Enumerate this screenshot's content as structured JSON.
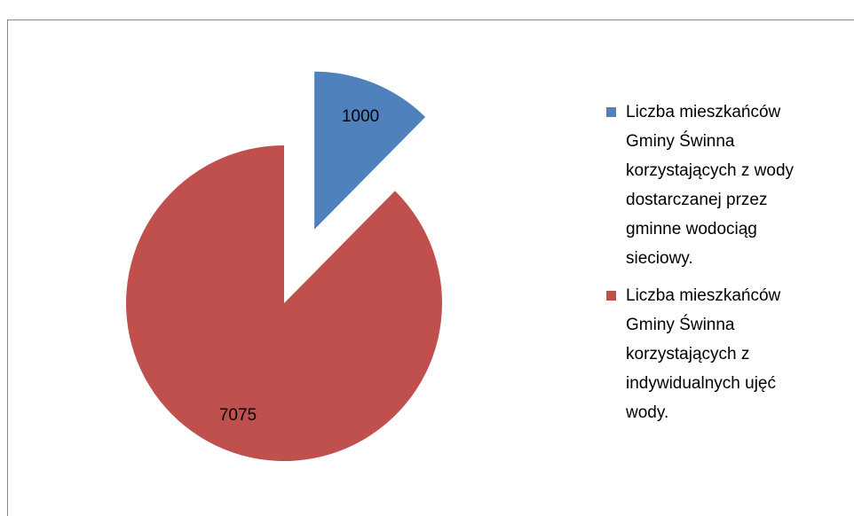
{
  "chart_data": {
    "type": "pie",
    "exploded": [
      true,
      false
    ],
    "categories": [
      "Liczba mieszkańców Gminy Świnna korzystających z wody dostarczanej przez gminne wodociąg sieciowy.",
      "Liczba mieszkańców Gminy Świnna korzystających z indywidualnych ujęć wody."
    ],
    "values": [
      1000,
      7075
    ],
    "colors": [
      "#4f81bd",
      "#c0504d"
    ]
  }
}
